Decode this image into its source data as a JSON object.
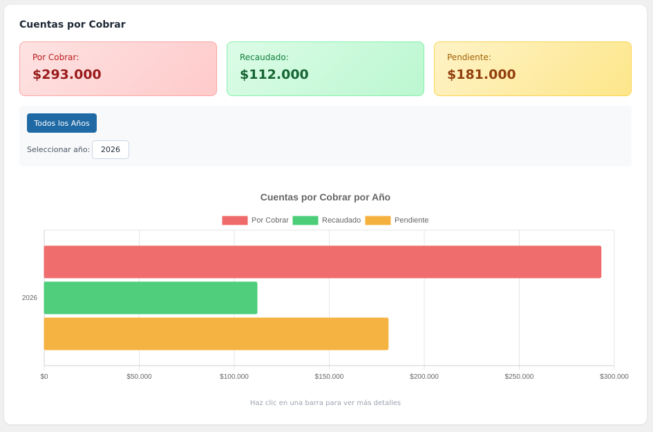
{
  "header": {
    "title": "Cuentas por Cobrar"
  },
  "stats": [
    {
      "label": "Por Cobrar:",
      "value": "$293.000"
    },
    {
      "label": "Recaudado:",
      "value": "$112.000"
    },
    {
      "label": "Pendiente:",
      "value": "$181.000"
    }
  ],
  "filters": {
    "all_years_label": "Todos los Años",
    "select_year_label": "Seleccionar año:",
    "selected_year": "2026"
  },
  "chart_data": {
    "type": "bar",
    "orientation": "horizontal",
    "title": "Cuentas por Cobrar por Año",
    "categories": [
      "2026"
    ],
    "series": [
      {
        "name": "Por Cobrar",
        "values": [
          293000
        ],
        "color": "#ef6a6a"
      },
      {
        "name": "Recaudado",
        "values": [
          112000
        ],
        "color": "#4ccd78"
      },
      {
        "name": "Pendiente",
        "values": [
          181000
        ],
        "color": "#f5b13d"
      }
    ],
    "xlim": [
      0,
      300000
    ],
    "x_ticks": [
      0,
      50000,
      100000,
      150000,
      200000,
      250000,
      300000
    ],
    "x_tick_labels": [
      "$0",
      "$50.000",
      "$100.000",
      "$150.000",
      "$200.000",
      "$250.000",
      "$300.000"
    ],
    "grid": true,
    "legend": "top"
  },
  "footer": {
    "hint": "Haz clic en una barra para ver más detalles"
  }
}
